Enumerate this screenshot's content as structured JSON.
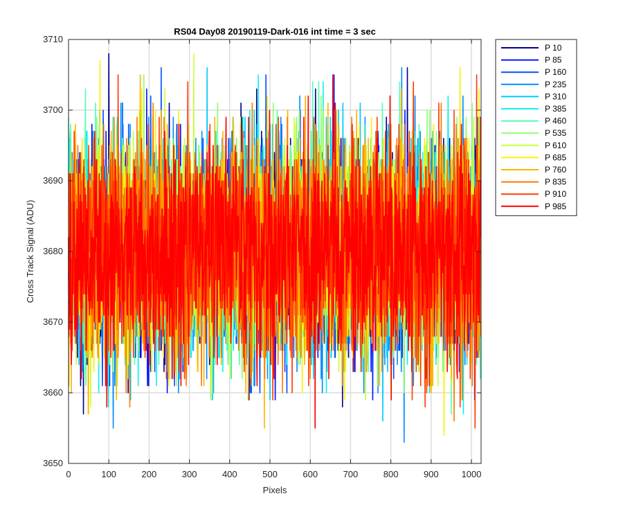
{
  "chart_data": {
    "type": "line",
    "title": "RS04 Day08 20190119-Dark-016 int time = 3 sec",
    "xlabel": "Pixels",
    "ylabel": "Cross Track Signal (ADU)",
    "xlim": [
      0,
      1024
    ],
    "ylim": [
      3650,
      3710
    ],
    "xticks": [
      0,
      100,
      200,
      300,
      400,
      500,
      600,
      700,
      800,
      900,
      1000
    ],
    "yticks": [
      3650,
      3660,
      3670,
      3680,
      3690,
      3700,
      3710
    ],
    "grid": true,
    "legend_position": "outside-top-right",
    "noise": {
      "mean": 3680,
      "std": 7.5,
      "min": 3652,
      "max": 3710,
      "samples_per_series": 1024
    },
    "series": [
      {
        "name": "P 10",
        "color": "#00008F"
      },
      {
        "name": "P 85",
        "color": "#0014FF"
      },
      {
        "name": "P 160",
        "color": "#0050FF"
      },
      {
        "name": "P 235",
        "color": "#008CFF"
      },
      {
        "name": "P 310",
        "color": "#00C8FF"
      },
      {
        "name": "P 385",
        "color": "#10F0EF"
      },
      {
        "name": "P 460",
        "color": "#50FFAF"
      },
      {
        "name": "P 535",
        "color": "#8CFF73"
      },
      {
        "name": "P 610",
        "color": "#C8FF37"
      },
      {
        "name": "P 685",
        "color": "#FFF000"
      },
      {
        "name": "P 760",
        "color": "#FFB400"
      },
      {
        "name": "P 835",
        "color": "#FF7800"
      },
      {
        "name": "P 910",
        "color": "#FF3C00"
      },
      {
        "name": "P 985",
        "color": "#FF0000"
      }
    ]
  }
}
